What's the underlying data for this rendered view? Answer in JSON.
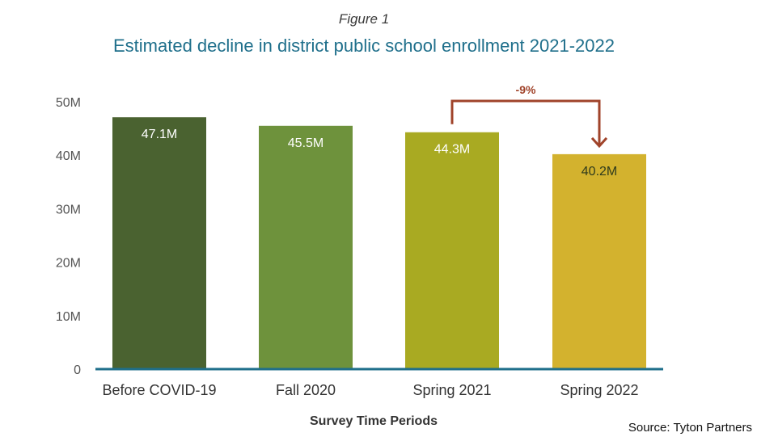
{
  "figure_label": "Figure 1",
  "source": "Source: Tyton Partners",
  "chart_data": {
    "type": "bar",
    "title": "Estimated decline in district public school enrollment 2021-2022",
    "xlabel": "Survey Time Periods",
    "ylabel": "",
    "categories": [
      "Before COVID-19",
      "Fall 2020",
      "Spring 2021",
      "Spring 2022"
    ],
    "values": [
      47.1,
      45.5,
      44.3,
      40.2
    ],
    "value_labels": [
      "47.1M",
      "45.5M",
      "44.3M",
      "40.2M"
    ],
    "bar_colors": [
      "#4a6230",
      "#6e923c",
      "#a9aa22",
      "#d3b22e"
    ],
    "ylim": [
      0,
      50
    ],
    "yticks": [
      0,
      10,
      20,
      30,
      40,
      50
    ],
    "ytick_labels": [
      "0",
      "10M",
      "20M",
      "30M",
      "40M",
      "50M"
    ],
    "grid": false,
    "baseline_color": "#1f6f8b",
    "annotation": {
      "text": "-9%",
      "from_category": "Spring 2021",
      "to_category": "Spring 2022",
      "color": "#a0432a"
    }
  }
}
